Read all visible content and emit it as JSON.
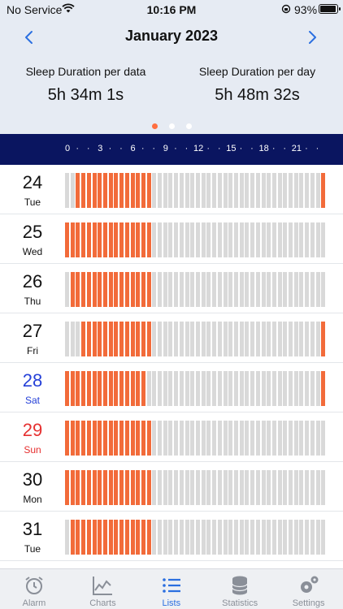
{
  "status_bar": {
    "carrier": "No Service",
    "time": "10:16 PM",
    "battery": "93%",
    "wifi_icon": "wifi-icon",
    "orientation_icon": "orientation-lock-icon",
    "battery_icon": "battery-icon",
    "battery_level": 0.93
  },
  "header": {
    "month_title": "January 2023",
    "prev_icon": "chevron-left-icon",
    "next_icon": "chevron-right-icon",
    "stats": {
      "per_data_label": "Sleep Duration per data",
      "per_data_value": "5h 34m 1s",
      "per_day_label": "Sleep Duration per day",
      "per_day_value": "5h 48m 32s"
    },
    "page_dots": {
      "count": 3,
      "active": 0
    }
  },
  "hour_scale": {
    "labels": [
      "0",
      "·",
      "·",
      "3",
      "·",
      "·",
      "6",
      "·",
      "·",
      "9",
      "·",
      "·",
      "12",
      "·",
      "·",
      "15",
      "·",
      "·",
      "18",
      "·",
      "·",
      "21",
      "·",
      "·"
    ]
  },
  "sleep_rows": [
    {
      "day": "24",
      "weekday": "Tue",
      "kind": "weekday",
      "asleep_slots": [
        2,
        3,
        4,
        5,
        6,
        7,
        8,
        9,
        10,
        11,
        12,
        13,
        14,
        15,
        47
      ]
    },
    {
      "day": "25",
      "weekday": "Wed",
      "kind": "weekday",
      "asleep_slots": [
        0,
        1,
        2,
        3,
        4,
        5,
        6,
        7,
        8,
        9,
        10,
        11,
        12,
        13,
        14,
        15
      ]
    },
    {
      "day": "26",
      "weekday": "Thu",
      "kind": "weekday",
      "asleep_slots": [
        1,
        2,
        3,
        4,
        5,
        6,
        7,
        8,
        9,
        10,
        11,
        12,
        13,
        14,
        15
      ]
    },
    {
      "day": "27",
      "weekday": "Fri",
      "kind": "weekday",
      "asleep_slots": [
        3,
        4,
        5,
        6,
        7,
        8,
        9,
        10,
        11,
        12,
        13,
        14,
        15,
        47
      ]
    },
    {
      "day": "28",
      "weekday": "Sat",
      "kind": "sat",
      "asleep_slots": [
        0,
        1,
        2,
        3,
        4,
        5,
        6,
        7,
        8,
        9,
        10,
        11,
        12,
        13,
        14,
        47
      ]
    },
    {
      "day": "29",
      "weekday": "Sun",
      "kind": "sun",
      "asleep_slots": [
        0,
        1,
        2,
        3,
        4,
        5,
        6,
        7,
        8,
        9,
        10,
        11,
        12,
        13,
        14,
        15
      ]
    },
    {
      "day": "30",
      "weekday": "Mon",
      "kind": "weekday",
      "asleep_slots": [
        0,
        1,
        2,
        3,
        4,
        5,
        6,
        7,
        8,
        9,
        10,
        11,
        12,
        13,
        14,
        15
      ]
    },
    {
      "day": "31",
      "weekday": "Tue",
      "kind": "weekday",
      "asleep_slots": [
        1,
        2,
        3,
        4,
        5,
        6,
        7,
        8,
        9,
        10,
        11,
        12,
        13,
        14,
        15
      ]
    }
  ],
  "slots_per_day": 48,
  "colors": {
    "asleep": "#f26b3a",
    "awake": "#d9d9d9",
    "accent": "#2b6fe0",
    "scale_bg": "#0a1560",
    "saturday": "#2540d8",
    "sunday": "#e63030"
  },
  "tabbar": {
    "tabs": [
      {
        "label": "Alarm",
        "icon": "alarm-clock-icon",
        "active": false
      },
      {
        "label": "Charts",
        "icon": "line-chart-icon",
        "active": false
      },
      {
        "label": "Lists",
        "icon": "list-icon",
        "active": true
      },
      {
        "label": "Statistics",
        "icon": "database-icon",
        "active": false
      },
      {
        "label": "Settings",
        "icon": "gears-icon",
        "active": false
      }
    ]
  }
}
